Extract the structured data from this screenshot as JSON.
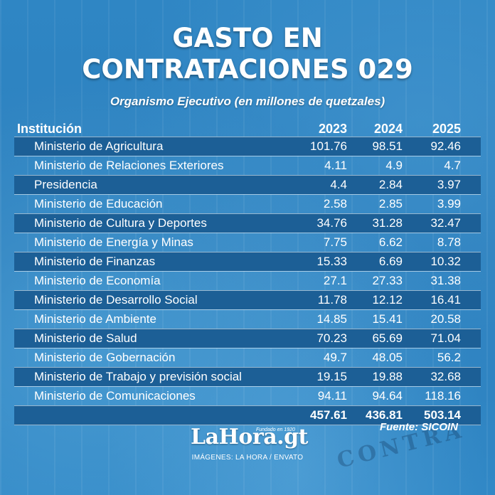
{
  "title_line1": "GASTO EN",
  "title_line2": "CONTRATACIONES 029",
  "subtitle": "Organismo Ejecutivo (en millones de quetzales)",
  "columns": [
    "Institución",
    "2023",
    "2024",
    "2025"
  ],
  "rows": [
    {
      "institucion": "Ministerio de Agricultura",
      "y2023": "101.76",
      "y2024": "98.51",
      "y2025": "92.46"
    },
    {
      "institucion": "Ministerio de Relaciones Exteriores",
      "y2023": "4.11",
      "y2024": "4.9",
      "y2025": "4.7"
    },
    {
      "institucion": "Presidencia",
      "y2023": "4.4",
      "y2024": "2.84",
      "y2025": "3.97"
    },
    {
      "institucion": "Ministerio de Educación",
      "y2023": "2.58",
      "y2024": "2.85",
      "y2025": "3.99"
    },
    {
      "institucion": "Ministerio de Cultura y Deportes",
      "y2023": "34.76",
      "y2024": "31.28",
      "y2025": "32.47"
    },
    {
      "institucion": "Ministerio de Energía y Minas",
      "y2023": "7.75",
      "y2024": "6.62",
      "y2025": "8.78"
    },
    {
      "institucion": "Ministerio de Finanzas",
      "y2023": "15.33",
      "y2024": "6.69",
      "y2025": "10.32"
    },
    {
      "institucion": "Ministerio de Economía",
      "y2023": "27.1",
      "y2024": "27.33",
      "y2025": "31.38"
    },
    {
      "institucion": "Ministerio de Desarrollo Social",
      "y2023": "11.78",
      "y2024": "12.12",
      "y2025": "16.41"
    },
    {
      "institucion": "Ministerio de Ambiente",
      "y2023": "14.85",
      "y2024": "15.41",
      "y2025": "20.58"
    },
    {
      "institucion": "Ministerio de Salud",
      "y2023": "70.23",
      "y2024": "65.69",
      "y2025": "71.04"
    },
    {
      "institucion": "Ministerio de Gobernación",
      "y2023": "49.7",
      "y2024": "48.05",
      "y2025": "56.2"
    },
    {
      "institucion": "Ministerio de Trabajo y previsión social",
      "y2023": "19.15",
      "y2024": "19.88",
      "y2025": "32.68"
    },
    {
      "institucion": "Ministerio de Comunicaciones",
      "y2023": "94.11",
      "y2024": "94.64",
      "y2025": "118.16"
    }
  ],
  "totals": {
    "y2023": "457.61",
    "y2024": "436.81",
    "y2025": "503.14"
  },
  "source": "Fuente: SICOIN",
  "logo_text": "LaHora.gt",
  "logo_tagline": "Fundado en 1920",
  "credits": "IMÁGENES: LA HORA / ENVATO",
  "background_watermark": "CONTRA",
  "colors": {
    "background": "#2a7cb8",
    "row_band": "#1c5f96",
    "text": "#ffffff"
  }
}
